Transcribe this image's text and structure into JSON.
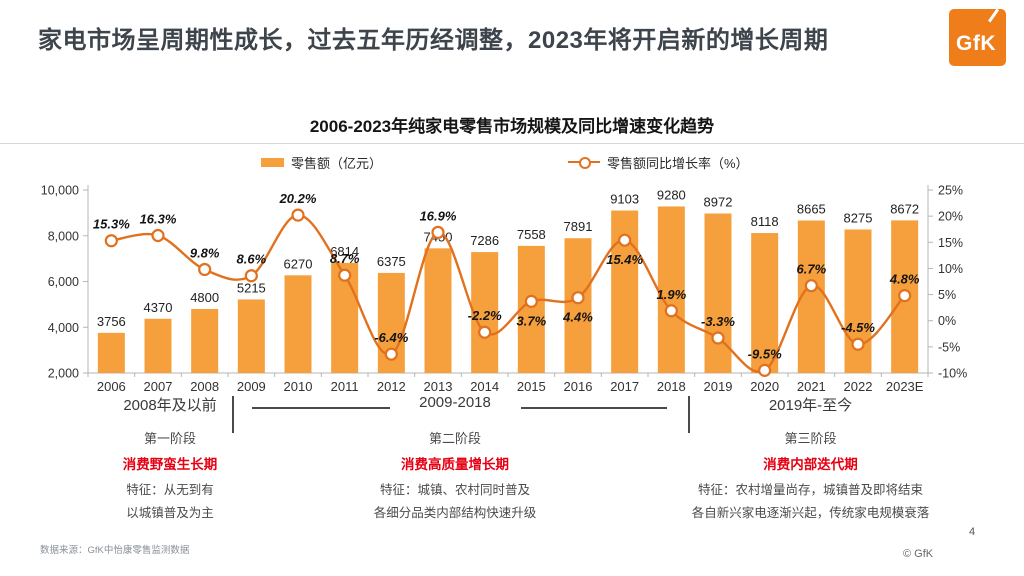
{
  "header": {
    "title": "家电市场呈周期性成长，过去五年历经调整，2023年将开启新的增长周期",
    "logo_text": "GfK"
  },
  "chart": {
    "title": "2006-2023年纯家电零售市场规模及同比增速变化趋势",
    "legend": [
      {
        "label": "零售额（亿元）"
      },
      {
        "label": "零售额同比增长率（%）"
      }
    ]
  },
  "chart_data": {
    "type": "bar+line",
    "title": "2006-2023年纯家电零售市场规模及同比增速变化趋势",
    "categories": [
      "2006",
      "2007",
      "2008",
      "2009",
      "2010",
      "2011",
      "2012",
      "2013",
      "2014",
      "2015",
      "2016",
      "2017",
      "2018",
      "2019",
      "2020",
      "2021",
      "2022",
      "2023E"
    ],
    "series": [
      {
        "name": "零售额（亿元）",
        "type": "bar",
        "axis": "left",
        "color": "#f5a03c",
        "values": [
          3756,
          4370,
          4800,
          5215,
          6270,
          6814,
          6375,
          7450,
          7286,
          7558,
          7891,
          9103,
          9280,
          8972,
          8118,
          8665,
          8275,
          8672
        ]
      },
      {
        "name": "零售额同比增长率（%）",
        "type": "line",
        "axis": "right",
        "color": "#e1711e",
        "values": [
          15.3,
          16.3,
          9.8,
          8.6,
          20.2,
          8.7,
          -6.4,
          16.9,
          -2.2,
          3.7,
          4.4,
          15.4,
          1.9,
          -3.3,
          -9.5,
          6.7,
          -4.5,
          4.8
        ],
        "label_side": [
          "above",
          "above",
          "above",
          "above",
          "above",
          "above",
          "above",
          "above",
          "above",
          "below",
          "below",
          "below",
          "above",
          "above",
          "above",
          "above",
          "above",
          "above"
        ]
      }
    ],
    "left_axis": {
      "min": 2000,
      "max": 10000,
      "tick_values": [
        2000,
        4000,
        6000,
        8000,
        10000
      ],
      "tick_labels": [
        "2,000",
        "4,000",
        "6,000",
        "8,000",
        "10,000"
      ]
    },
    "right_axis": {
      "min": -10,
      "max": 25,
      "tick_values": [
        -10,
        -5,
        0,
        5,
        10,
        15,
        20,
        25
      ],
      "tick_labels": [
        "-10%",
        "-5%",
        "0%",
        "5%",
        "10%",
        "15%",
        "20%",
        "25%"
      ]
    },
    "grid": false,
    "legend_position": "top"
  },
  "stages": [
    {
      "period": "2008年及以前",
      "stage": "第一阶段",
      "phase": "消费野蛮生长期",
      "features": [
        "特征：从无到有",
        "以城镇普及为主"
      ]
    },
    {
      "period": "2009-2018",
      "stage": "第二阶段",
      "phase": "消费高质量增长期",
      "features": [
        "特征：城镇、农村同时普及",
        "各细分品类内部结构快速升级"
      ]
    },
    {
      "period": "2019年-至今",
      "stage": "第三阶段",
      "phase": "消费内部迭代期",
      "features": [
        "特征：农村增量尚存，城镇普及即将结束",
        "各自新兴家电逐渐兴起，传统家电规模衰落"
      ]
    }
  ],
  "footer": {
    "source": "数据来源：GfK中怡康零售监测数据",
    "page": "4",
    "copyright": "© GfK"
  }
}
